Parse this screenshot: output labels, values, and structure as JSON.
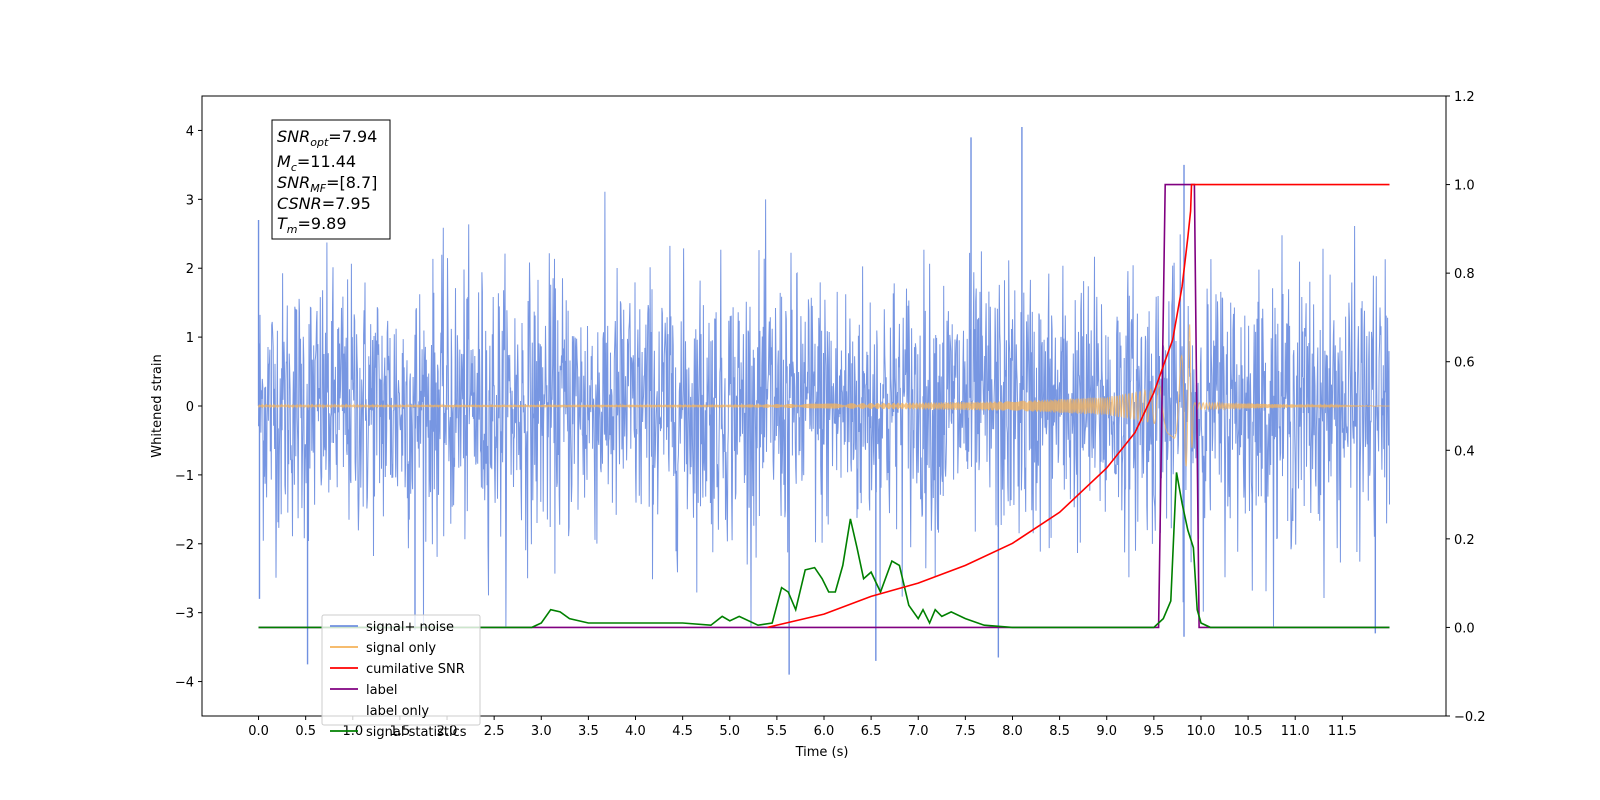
{
  "chart_data": {
    "type": "line",
    "xlabel": "Time (s)",
    "ylabel": "Whitened strain",
    "xlim": [
      -0.6,
      12.6
    ],
    "ylim": [
      -4.5,
      4.5
    ],
    "y2lim": [
      -0.2,
      1.2
    ],
    "x_ticks": [
      "0.0",
      "0.5",
      "1.0",
      "1.5",
      "2.0",
      "2.5",
      "3.0",
      "3.5",
      "4.0",
      "4.5",
      "5.0",
      "5.5",
      "6.0",
      "6.5",
      "7.0",
      "7.5",
      "8.0",
      "8.5",
      "9.0",
      "9.5",
      "10.0",
      "10.5",
      "11.0",
      "11.5"
    ],
    "y_ticks": [
      "−4",
      "−3",
      "−2",
      "−1",
      "0",
      "1",
      "2",
      "3",
      "4"
    ],
    "y2_ticks": [
      "−0.2",
      "0.0",
      "0.2",
      "0.4",
      "0.6",
      "0.8",
      "1.0",
      "1.2"
    ],
    "legend_position": "lower-left",
    "annotation": {
      "snr_opt": {
        "sym": "SNR",
        "sub": "opt",
        "value": "=7.94"
      },
      "mc": {
        "sym": "M",
        "sub": "c",
        "value": "=11.44"
      },
      "snr_mf": {
        "sym": "SNR",
        "sub": "MF",
        "value": "=[8.7]"
      },
      "csnr": {
        "sym": "CSNR",
        "value": "=7.95"
      },
      "tm": {
        "sym": "T",
        "sub": "m",
        "value": "=9.89"
      }
    },
    "series": [
      {
        "name": "signal+ noise",
        "color": "#7090e0",
        "axis": "left",
        "description": "whitened noisy strain, std ~1, range about −3.9 to 4.1",
        "x_range": [
          0.0,
          12.0
        ],
        "notable_peaks": [
          [
            0.0,
            2.7
          ],
          [
            0.01,
            -2.8
          ],
          [
            0.52,
            -3.75
          ],
          [
            1.66,
            -3.25
          ],
          [
            7.56,
            3.9
          ],
          [
            8.1,
            4.05
          ],
          [
            9.82,
            3.5
          ],
          [
            9.82,
            -3.35
          ],
          [
            5.63,
            -3.9
          ],
          [
            6.55,
            -3.7
          ],
          [
            7.85,
            -3.65
          ],
          [
            11.85,
            -3.3
          ]
        ]
      },
      {
        "name": "signal only",
        "color": "#f5b35a",
        "axis": "left",
        "description": "chirp waveform growing in amplitude up to merger",
        "envelope": [
          [
            0.0,
            0.01
          ],
          [
            5.0,
            0.02
          ],
          [
            7.0,
            0.05
          ],
          [
            8.0,
            0.07
          ],
          [
            9.0,
            0.13
          ],
          [
            9.5,
            0.25
          ],
          [
            9.7,
            0.45
          ],
          [
            9.85,
            0.9
          ],
          [
            9.89,
            1.3
          ],
          [
            9.92,
            0.05
          ],
          [
            12.0,
            0.0
          ]
        ]
      },
      {
        "name": "cumilative SNR",
        "color": "#ff0000",
        "axis": "right",
        "points": [
          [
            5.4,
            0.0
          ],
          [
            6.0,
            0.03
          ],
          [
            6.5,
            0.07
          ],
          [
            7.0,
            0.1
          ],
          [
            7.5,
            0.14
          ],
          [
            8.0,
            0.19
          ],
          [
            8.5,
            0.26
          ],
          [
            9.0,
            0.36
          ],
          [
            9.3,
            0.44
          ],
          [
            9.5,
            0.53
          ],
          [
            9.7,
            0.65
          ],
          [
            9.8,
            0.77
          ],
          [
            9.86,
            0.88
          ],
          [
            9.89,
            0.94
          ],
          [
            9.9,
            1.0
          ],
          [
            12.0,
            1.0
          ]
        ]
      },
      {
        "name": "label",
        "color": "#800080",
        "axis": "right",
        "points": [
          [
            0.0,
            0.0
          ],
          [
            9.55,
            0.0
          ],
          [
            9.62,
            1.0
          ],
          [
            9.93,
            1.0
          ],
          [
            9.98,
            0.0
          ],
          [
            12.0,
            0.0
          ]
        ]
      },
      {
        "name": "label only",
        "color": "#aaaaaa",
        "axis": "right",
        "hidden": true
      },
      {
        "name": "signal statistics",
        "color": "#008000",
        "axis": "right",
        "points": [
          [
            0.0,
            0.0
          ],
          [
            2.9,
            0.0
          ],
          [
            3.0,
            0.01
          ],
          [
            3.1,
            0.04
          ],
          [
            3.2,
            0.035
          ],
          [
            3.3,
            0.02
          ],
          [
            3.5,
            0.01
          ],
          [
            3.6,
            0.01
          ],
          [
            4.0,
            0.01
          ],
          [
            4.5,
            0.01
          ],
          [
            4.8,
            0.005
          ],
          [
            4.92,
            0.025
          ],
          [
            5.0,
            0.015
          ],
          [
            5.1,
            0.025
          ],
          [
            5.3,
            0.005
          ],
          [
            5.45,
            0.01
          ],
          [
            5.55,
            0.09
          ],
          [
            5.62,
            0.08
          ],
          [
            5.7,
            0.04
          ],
          [
            5.8,
            0.13
          ],
          [
            5.9,
            0.135
          ],
          [
            5.98,
            0.11
          ],
          [
            6.05,
            0.08
          ],
          [
            6.12,
            0.08
          ],
          [
            6.2,
            0.14
          ],
          [
            6.28,
            0.245
          ],
          [
            6.35,
            0.18
          ],
          [
            6.42,
            0.11
          ],
          [
            6.5,
            0.125
          ],
          [
            6.6,
            0.08
          ],
          [
            6.72,
            0.15
          ],
          [
            6.8,
            0.14
          ],
          [
            6.9,
            0.05
          ],
          [
            7.0,
            0.02
          ],
          [
            7.05,
            0.04
          ],
          [
            7.12,
            0.01
          ],
          [
            7.18,
            0.04
          ],
          [
            7.25,
            0.025
          ],
          [
            7.35,
            0.035
          ],
          [
            7.5,
            0.02
          ],
          [
            7.7,
            0.005
          ],
          [
            8.0,
            0.0
          ],
          [
            8.5,
            0.0
          ],
          [
            9.5,
            0.0
          ],
          [
            9.6,
            0.02
          ],
          [
            9.68,
            0.06
          ],
          [
            9.74,
            0.35
          ],
          [
            9.8,
            0.28
          ],
          [
            9.86,
            0.22
          ],
          [
            9.92,
            0.18
          ],
          [
            9.96,
            0.04
          ],
          [
            10.0,
            0.01
          ],
          [
            10.1,
            0.0
          ],
          [
            12.0,
            0.0
          ]
        ]
      }
    ]
  }
}
